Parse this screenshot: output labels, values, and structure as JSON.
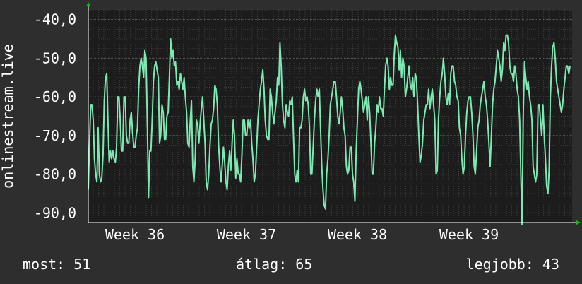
{
  "chart_data": {
    "type": "line",
    "ylabel": "onlinestream.live",
    "ylim": [
      -92.5,
      -37.5
    ],
    "y_ticks": [
      -40,
      -50,
      -60,
      -70,
      -80,
      -90
    ],
    "y_tick_labels": [
      "-40,0",
      "-50,0",
      "-60,0",
      "-70,0",
      "-80,0",
      "-90,0"
    ],
    "x_ticks": [
      "Week 36",
      "Week 37",
      "Week 38",
      "Week 39"
    ],
    "grid": true,
    "colors": {
      "background": "#2e2e2e",
      "plot_background": "#1c1c1c",
      "grid_minor": "#3a3a3a",
      "grid_major": "#5a5a5a",
      "line": "#7ee8b2",
      "axis": "#ffffff",
      "arrow": "#00cc00"
    },
    "series": [
      {
        "values": [
          -84,
          -72,
          -62,
          -62,
          -66,
          -76,
          -80,
          -82,
          -68,
          -80,
          -82,
          -81,
          -75,
          -61,
          -55,
          -54,
          -66,
          -77,
          -74,
          -76,
          -74,
          -76,
          -77,
          -73,
          -60,
          -60,
          -66,
          -74,
          -74,
          -60,
          -60,
          -70,
          -72,
          -72,
          -66,
          -64,
          -69,
          -73,
          -73,
          -70,
          -68,
          -58,
          -52,
          -50,
          -52,
          -55,
          -48,
          -50,
          -66,
          -86,
          -74,
          -74,
          -66,
          -56,
          -52,
          -51,
          -53,
          -55,
          -72,
          -70,
          -62,
          -64,
          -71,
          -71,
          -65,
          -64,
          -55,
          -45,
          -50,
          -48,
          -52,
          -51,
          -57,
          -56,
          -58,
          -54,
          -56,
          -58,
          -55,
          -60,
          -64,
          -72,
          -73,
          -66,
          -61,
          -78,
          -82,
          -76,
          -66,
          -67,
          -72,
          -67,
          -63,
          -60,
          -66,
          -72,
          -82,
          -84,
          -80,
          -73,
          -67,
          -66,
          -63,
          -57,
          -58,
          -62,
          -72,
          -78,
          -82,
          -78,
          -73,
          -77,
          -82,
          -84,
          -78,
          -74,
          -79,
          -72,
          -66,
          -70,
          -81,
          -76,
          -80,
          -80,
          -82,
          -75,
          -66,
          -66,
          -70,
          -70,
          -66,
          -68,
          -66,
          -72,
          -76,
          -82,
          -80,
          -73,
          -66,
          -62,
          -58,
          -56,
          -53,
          -58,
          -66,
          -70,
          -71,
          -71,
          -58,
          -60,
          -64,
          -67,
          -64,
          -61,
          -55,
          -57,
          -46,
          -52,
          -62,
          -66,
          -68,
          -62,
          -64,
          -65,
          -61,
          -62,
          -60,
          -70,
          -80,
          -82,
          -79,
          -82,
          -68,
          -68,
          -66,
          -60,
          -58,
          -61,
          -60,
          -62,
          -68,
          -80,
          -80,
          -73,
          -66,
          -61,
          -58,
          -60,
          -58,
          -68,
          -78,
          -84,
          -88,
          -89,
          -80,
          -76,
          -70,
          -62,
          -60,
          -58,
          -56,
          -56,
          -60,
          -65,
          -67,
          -64,
          -60,
          -63,
          -68,
          -70,
          -78,
          -80,
          -79,
          -73,
          -73,
          -80,
          -82,
          -87,
          -74,
          -66,
          -58,
          -56,
          -58,
          -61,
          -64,
          -62,
          -60,
          -66,
          -60,
          -64,
          -72,
          -80,
          -80,
          -72,
          -68,
          -62,
          -64,
          -60,
          -63,
          -63,
          -65,
          -58,
          -52,
          -50,
          -52,
          -58,
          -55,
          -57,
          -57,
          -49,
          -44,
          -46,
          -47,
          -53,
          -48,
          -55,
          -50,
          -52,
          -60,
          -58,
          -55,
          -52,
          -57,
          -58,
          -55,
          -60,
          -54,
          -55,
          -62,
          -70,
          -77,
          -75,
          -72,
          -66,
          -64,
          -62,
          -62,
          -58,
          -63,
          -60,
          -58,
          -62,
          -66,
          -80,
          -79,
          -66,
          -60,
          -56,
          -54,
          -50,
          -54,
          -60,
          -62,
          -59,
          -62,
          -54,
          -52,
          -52,
          -56,
          -57,
          -60,
          -61,
          -68,
          -70,
          -76,
          -80,
          -78,
          -70,
          -64,
          -61,
          -60,
          -60,
          -64,
          -70,
          -78,
          -80,
          -74,
          -68,
          -66,
          -62,
          -60,
          -58,
          -56,
          -60,
          -62,
          -66,
          -72,
          -78,
          -70,
          -62,
          -58,
          -56,
          -52,
          -48,
          -50,
          -52,
          -56,
          -53,
          -46,
          -48,
          -44,
          -44,
          -46,
          -52,
          -54,
          -54,
          -56,
          -52,
          -54,
          -58,
          -60,
          -66,
          -80,
          -93,
          -64,
          -51,
          -55,
          -58,
          -56,
          -60,
          -62,
          -66,
          -78,
          -80,
          -82,
          -80,
          -62,
          -62,
          -66,
          -70,
          -62,
          -70,
          -76,
          -83,
          -85,
          -79,
          -60,
          -52,
          -47,
          -46,
          -50,
          -56,
          -58,
          -60,
          -62,
          -64,
          -62,
          -58,
          -55,
          -52,
          -52,
          -54,
          -52
        ]
      }
    ]
  },
  "footer": {
    "current": "most: 51",
    "average": "átlag: 65",
    "best": "legjobb: 43"
  }
}
